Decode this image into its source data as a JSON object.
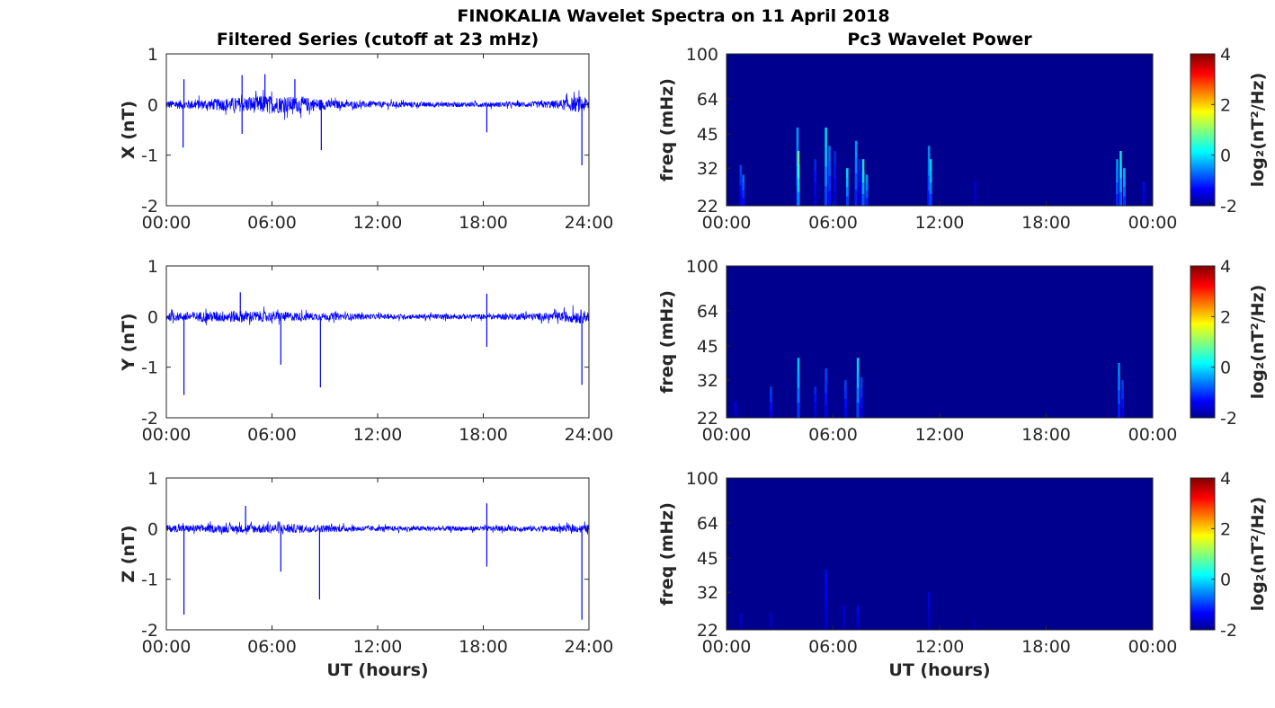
{
  "figure": {
    "title": "FINOKALIA Wavelet Spectra on 11 April 2018",
    "left_title": "Filtered Series (cutoff at 23 mHz)",
    "right_title": "Pc3 Wavelet Power",
    "xlabel": "UT (hours)"
  },
  "series_panels": [
    {
      "ylabel": "X (nT)"
    },
    {
      "ylabel": "Y (nT)"
    },
    {
      "ylabel": "Z (nT)"
    }
  ],
  "spectra_panels": [
    {
      "ylabel": "freq (mHz)",
      "cbar_label": "log₂(nT²/Hz)"
    },
    {
      "ylabel": "freq (mHz)",
      "cbar_label": "log₂(nT²/Hz)"
    },
    {
      "ylabel": "freq (mHz)",
      "cbar_label": "log₂(nT²/Hz)"
    }
  ],
  "colors": {
    "series": "#0000ff",
    "background_power": "#00008f",
    "colormap": "jet"
  },
  "chart_data": [
    {
      "type": "line",
      "panel": "X",
      "xlabel": "",
      "ylabel": "X (nT)",
      "x_ticks": [
        "00:00",
        "06:00",
        "12:00",
        "18:00",
        "24:00"
      ],
      "y_ticks": [
        "-2",
        "-1",
        "0",
        "1"
      ],
      "xlim_hours": [
        0,
        24
      ],
      "ylim": [
        -2,
        1
      ],
      "noise_envelope": [
        [
          0,
          0.08
        ],
        [
          2,
          0.1
        ],
        [
          4,
          0.14
        ],
        [
          5.5,
          0.18
        ],
        [
          7,
          0.16
        ],
        [
          8,
          0.14
        ],
        [
          10,
          0.07
        ],
        [
          12,
          0.06
        ],
        [
          16,
          0.05
        ],
        [
          20,
          0.05
        ],
        [
          22,
          0.08
        ],
        [
          23.5,
          0.16
        ],
        [
          24,
          0.12
        ]
      ],
      "spikes": [
        {
          "x": 0.95,
          "y": -0.85
        },
        {
          "x": 1.0,
          "y": 0.5
        },
        {
          "x": 4.3,
          "y": 0.58
        },
        {
          "x": 4.3,
          "y": -0.58
        },
        {
          "x": 5.6,
          "y": 0.6
        },
        {
          "x": 7.3,
          "y": 0.5
        },
        {
          "x": 8.8,
          "y": -0.9
        },
        {
          "x": 18.2,
          "y": -0.55
        },
        {
          "x": 23.6,
          "y": -1.2
        }
      ]
    },
    {
      "type": "line",
      "panel": "Y",
      "xlabel": "",
      "ylabel": "Y (nT)",
      "x_ticks": [
        "00:00",
        "06:00",
        "12:00",
        "18:00",
        "24:00"
      ],
      "y_ticks": [
        "-2",
        "-1",
        "0",
        "1"
      ],
      "xlim_hours": [
        0,
        24
      ],
      "ylim": [
        -2,
        1
      ],
      "noise_envelope": [
        [
          0,
          0.08
        ],
        [
          4,
          0.12
        ],
        [
          6,
          0.1
        ],
        [
          8,
          0.08
        ],
        [
          12,
          0.05
        ],
        [
          18,
          0.05
        ],
        [
          22,
          0.08
        ],
        [
          23.5,
          0.14
        ],
        [
          24,
          0.1
        ]
      ],
      "spikes": [
        {
          "x": 1.0,
          "y": -1.55
        },
        {
          "x": 4.2,
          "y": 0.48
        },
        {
          "x": 6.5,
          "y": -0.95
        },
        {
          "x": 8.75,
          "y": -1.4
        },
        {
          "x": 18.2,
          "y": 0.45
        },
        {
          "x": 18.2,
          "y": -0.6
        },
        {
          "x": 23.6,
          "y": -1.35
        }
      ]
    },
    {
      "type": "line",
      "panel": "Z",
      "xlabel": "UT (hours)",
      "ylabel": "Z (nT)",
      "x_ticks": [
        "00:00",
        "06:00",
        "12:00",
        "18:00",
        "24:00"
      ],
      "y_ticks": [
        "-2",
        "-1",
        "0",
        "1"
      ],
      "xlim_hours": [
        0,
        24
      ],
      "ylim": [
        -2,
        1
      ],
      "noise_envelope": [
        [
          0,
          0.07
        ],
        [
          4,
          0.08
        ],
        [
          6,
          0.1
        ],
        [
          8,
          0.08
        ],
        [
          12,
          0.05
        ],
        [
          18,
          0.05
        ],
        [
          22,
          0.06
        ],
        [
          24,
          0.08
        ]
      ],
      "spikes": [
        {
          "x": 1.0,
          "y": -1.7
        },
        {
          "x": 4.5,
          "y": 0.45
        },
        {
          "x": 6.5,
          "y": -0.85
        },
        {
          "x": 8.7,
          "y": -1.4
        },
        {
          "x": 18.2,
          "y": 0.5
        },
        {
          "x": 18.2,
          "y": -0.75
        },
        {
          "x": 23.6,
          "y": -1.8
        }
      ]
    },
    {
      "type": "heatmap",
      "panel": "X power",
      "ylabel": "freq (mHz)",
      "x_ticks": [
        "00:00",
        "06:00",
        "12:00",
        "18:00",
        "00:00"
      ],
      "y_ticks": [
        "22",
        "32",
        "45",
        "64",
        "100"
      ],
      "y_scale": "log",
      "ylim_mHz": [
        22,
        100
      ],
      "clim": [
        -2,
        4
      ],
      "cbar_ticks": [
        "-2",
        "0",
        "2",
        "4"
      ],
      "bursts": [
        [
          0.8,
          33,
          -0.8
        ],
        [
          0.95,
          30,
          -0.5
        ],
        [
          4.0,
          48,
          -0.2
        ],
        [
          4.05,
          38,
          1.0
        ],
        [
          5.0,
          35,
          -1.0
        ],
        [
          5.6,
          48,
          0.2
        ],
        [
          5.8,
          40,
          -0.5
        ],
        [
          6.1,
          38,
          -1.0
        ],
        [
          6.8,
          32,
          0.2
        ],
        [
          7.3,
          42,
          -0.2
        ],
        [
          7.5,
          35,
          -1.0
        ],
        [
          7.7,
          35,
          0.5
        ],
        [
          7.9,
          30,
          -0.2
        ],
        [
          11.4,
          40,
          -0.3
        ],
        [
          11.5,
          35,
          0.2
        ],
        [
          14.0,
          28,
          -1.5
        ],
        [
          22.0,
          35,
          -0.2
        ],
        [
          22.2,
          38,
          0.4
        ],
        [
          22.4,
          32,
          0.0
        ],
        [
          23.5,
          28,
          -1.2
        ]
      ]
    },
    {
      "type": "heatmap",
      "panel": "Y power",
      "ylabel": "freq (mHz)",
      "x_ticks": [
        "00:00",
        "06:00",
        "12:00",
        "18:00",
        "00:00"
      ],
      "y_ticks": [
        "22",
        "32",
        "45",
        "64",
        "100"
      ],
      "y_scale": "log",
      "ylim_mHz": [
        22,
        100
      ],
      "clim": [
        -2,
        4
      ],
      "cbar_ticks": [
        "-2",
        "0",
        "2",
        "4"
      ],
      "bursts": [
        [
          0.5,
          26,
          -1.3
        ],
        [
          2.5,
          30,
          -0.8
        ],
        [
          4.05,
          40,
          0.1
        ],
        [
          5.0,
          30,
          -1.0
        ],
        [
          5.6,
          36,
          -0.8
        ],
        [
          6.7,
          32,
          -0.8
        ],
        [
          7.4,
          40,
          0.2
        ],
        [
          7.6,
          33,
          -0.8
        ],
        [
          22.1,
          38,
          -0.3
        ],
        [
          22.3,
          32,
          -0.8
        ]
      ]
    },
    {
      "type": "heatmap",
      "panel": "Z power",
      "ylabel": "freq (mHz)",
      "x_ticks": [
        "00:00",
        "06:00",
        "12:00",
        "18:00",
        "00:00"
      ],
      "y_ticks": [
        "22",
        "32",
        "45",
        "64",
        "100"
      ],
      "y_scale": "log",
      "ylim_mHz": [
        22,
        100
      ],
      "clim": [
        -2,
        4
      ],
      "cbar_ticks": [
        "-2",
        "0",
        "2",
        "4"
      ],
      "bursts": [
        [
          0.8,
          26,
          -1.5
        ],
        [
          2.5,
          26,
          -1.5
        ],
        [
          5.6,
          40,
          -1.2
        ],
        [
          6.6,
          28,
          -1.4
        ],
        [
          7.4,
          28,
          -1.2
        ],
        [
          11.4,
          32,
          -1.4
        ],
        [
          14,
          24,
          -1.7
        ]
      ]
    }
  ]
}
